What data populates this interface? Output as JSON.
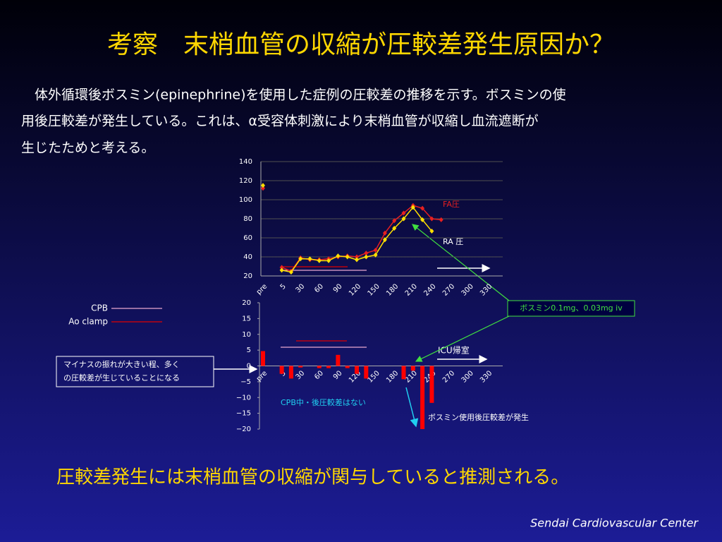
{
  "slide": {
    "title": "考察　末梢血管の収縮が圧較差発生原因か？",
    "body": [
      "　体外循環後ボスミン(epinephrine)を使用した症例の圧較差の推移を示す。ボスミンの使",
      "用後圧較差が発生している。これは、α受容体刺激により末梢血管が収縮し血流遮断が",
      "生じたためと考える。"
    ],
    "conclusion": "圧較差発生には末梢血管の収縮が関与していると推測される。",
    "footer": "Sendai Cardiovascular Center"
  },
  "chart_data": [
    {
      "type": "line",
      "categories": [
        "pre",
        null,
        "5",
        null,
        "30",
        null,
        "60",
        null,
        "90",
        null,
        "120",
        null,
        "150",
        null,
        "180",
        null,
        "210",
        null,
        "240",
        null,
        "270",
        null,
        "300",
        null,
        "330"
      ],
      "series": [
        {
          "name": "FA圧",
          "color": "#e82020",
          "values": [
            112,
            null,
            29,
            25,
            39,
            37,
            37,
            38,
            40,
            41,
            40,
            44,
            47,
            65,
            78,
            86,
            94,
            91,
            80,
            79,
            null,
            null,
            null,
            null,
            null
          ]
        },
        {
          "name": "RA 圧",
          "color": "#ffe000",
          "values": [
            115,
            null,
            26,
            24,
            38,
            38,
            36,
            36,
            41,
            40,
            37,
            40,
            42,
            58,
            70,
            80,
            92,
            79,
            67,
            null,
            null,
            null,
            null,
            null,
            null
          ]
        }
      ],
      "ylim": [
        20,
        140
      ],
      "yticks": [
        20,
        40,
        60,
        80,
        100,
        120,
        140
      ],
      "grid": true
    },
    {
      "type": "bar",
      "categories": [
        "pre",
        null,
        "5",
        null,
        "30",
        null,
        "60",
        null,
        "90",
        null,
        "120",
        null,
        "150",
        null,
        "180",
        null,
        "210",
        null,
        "240",
        null,
        "270",
        null,
        "300",
        null,
        "330"
      ],
      "values": [
        4.7,
        null,
        -2.5,
        -4,
        -0.5,
        null,
        -0.7,
        -0.7,
        3.5,
        -0.7,
        -2.5,
        -4,
        null,
        null,
        null,
        -4.2,
        -1.5,
        -20,
        -11.7,
        null,
        null,
        null,
        null,
        null,
        null
      ],
      "color": "#ff0000",
      "ylim": [
        -20,
        20
      ],
      "yticks": [
        20,
        15,
        10,
        5,
        0,
        {
          "value": -5,
          "label": "−5"
        },
        {
          "value": -10,
          "label": "−10"
        },
        {
          "value": -15,
          "label": "−15"
        },
        {
          "value": -20,
          "label": "−20"
        }
      ],
      "legend": [
        {
          "name": "CPB",
          "color": "#e8a8d0"
        },
        {
          "name": "Ao clamp",
          "color": "#e00000"
        }
      ]
    }
  ],
  "callouts": {
    "drug": "ボスミン0.1mg、0.03mg iv",
    "icu": "ICU帰室",
    "note": [
      "マイナスの振れが大きい程、多く",
      "の圧較差が生じていることになる"
    ],
    "no_gap": "CPB中・後圧較差はない",
    "gap": "ボスミン使用後圧較差が発生"
  }
}
